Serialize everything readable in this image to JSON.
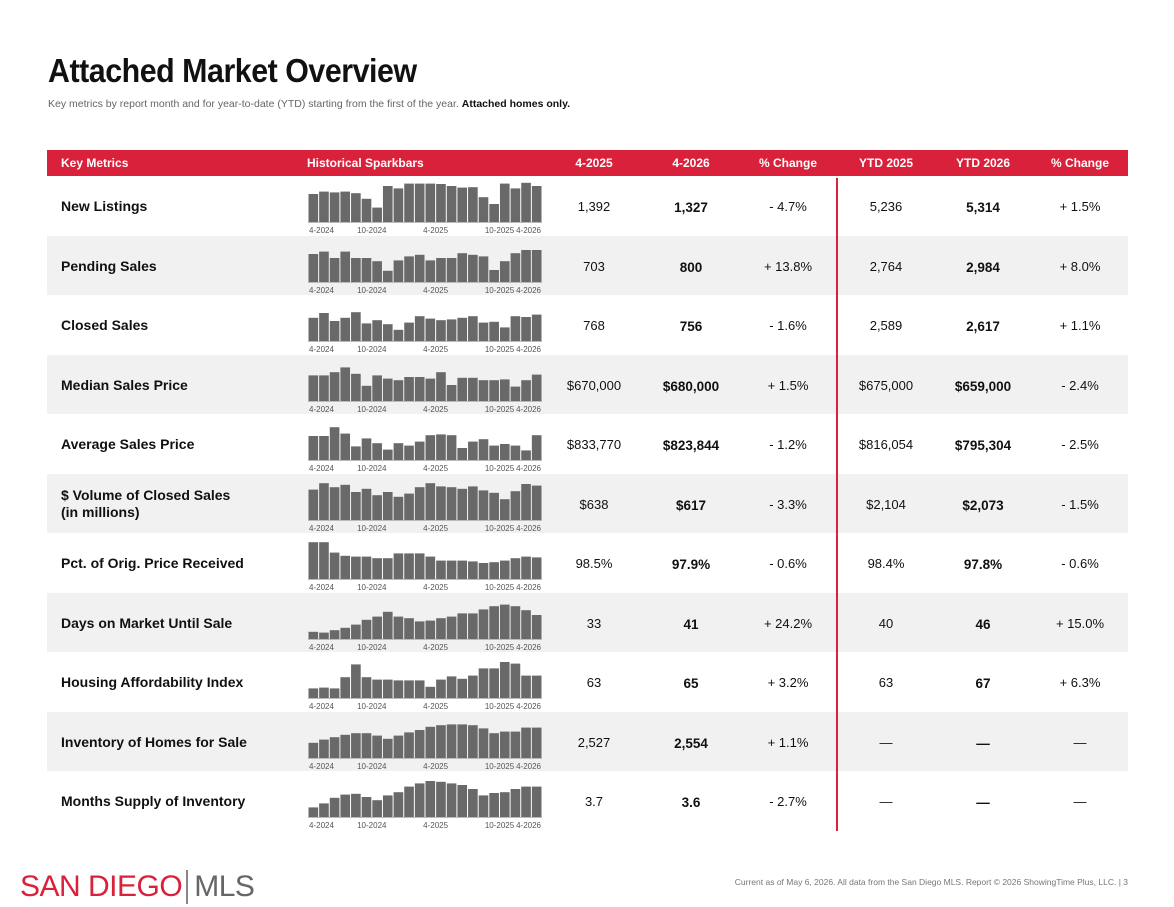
{
  "header": {
    "title": "Attached Market Overview",
    "subtitle": "Key metrics by report month and for year-to-date (YTD) starting from the first of the year.",
    "subtitle_bold": "Attached homes only."
  },
  "columns": {
    "metrics": "Key Metrics",
    "sparkbars": "Historical Sparkbars",
    "m1": "4-2025",
    "m2": "4-2026",
    "m_change": "% Change",
    "y1": "YTD 2025",
    "y2": "YTD 2026",
    "y_change": "% Change"
  },
  "spark_labels": [
    "4-2024",
    "10-2024",
    "4-2025",
    "10-2025",
    "4-2026"
  ],
  "colors": {
    "accent": "#d9213b",
    "bar": "#696969"
  },
  "rows": [
    {
      "line1": "New Listings",
      "line2": "",
      "m1": "1,392",
      "m2": "1,327",
      "mchg": "- 4.7%",
      "y1": "5,236",
      "y2": "5,314",
      "ychg": "+ 1.5%",
      "spark": [
        0.7,
        0.76,
        0.74,
        0.76,
        0.72,
        0.58,
        0.36,
        0.9,
        0.84,
        0.96,
        0.96,
        0.96,
        0.95,
        0.9,
        0.86,
        0.87,
        0.62,
        0.45,
        0.96,
        0.84,
        0.98,
        0.9
      ]
    },
    {
      "line1": "Pending Sales",
      "line2": "",
      "m1": "703",
      "m2": "800",
      "mchg": "+ 13.8%",
      "y1": "2,764",
      "y2": "2,984",
      "ychg": "+ 8.0%",
      "spark": [
        0.7,
        0.76,
        0.6,
        0.76,
        0.6,
        0.6,
        0.52,
        0.28,
        0.54,
        0.64,
        0.68,
        0.54,
        0.6,
        0.6,
        0.72,
        0.68,
        0.64,
        0.3,
        0.52,
        0.72,
        0.8,
        0.8
      ]
    },
    {
      "line1": "Closed Sales",
      "line2": "",
      "m1": "768",
      "m2": "756",
      "mchg": "- 1.6%",
      "y1": "2,589",
      "y2": "2,617",
      "ychg": "+ 1.1%",
      "spark": [
        0.58,
        0.7,
        0.5,
        0.58,
        0.72,
        0.44,
        0.52,
        0.42,
        0.28,
        0.46,
        0.62,
        0.56,
        0.52,
        0.54,
        0.58,
        0.62,
        0.46,
        0.48,
        0.34,
        0.62,
        0.6,
        0.66
      ]
    },
    {
      "line1": "Median Sales Price",
      "line2": "",
      "m1": "$670,000",
      "m2": "$680,000",
      "mchg": "+ 1.5%",
      "y1": "$675,000",
      "y2": "$659,000",
      "ychg": "- 2.4%",
      "spark": [
        0.64,
        0.64,
        0.72,
        0.84,
        0.68,
        0.38,
        0.64,
        0.56,
        0.52,
        0.6,
        0.6,
        0.56,
        0.72,
        0.4,
        0.58,
        0.58,
        0.52,
        0.52,
        0.54,
        0.36,
        0.52,
        0.66
      ]
    },
    {
      "line1": "Average Sales Price",
      "line2": "",
      "m1": "$833,770",
      "m2": "$823,844",
      "mchg": "- 1.2%",
      "y1": "$816,054",
      "y2": "$795,304",
      "ychg": "- 2.5%",
      "spark": [
        0.6,
        0.6,
        0.82,
        0.66,
        0.34,
        0.54,
        0.42,
        0.26,
        0.42,
        0.36,
        0.46,
        0.62,
        0.64,
        0.62,
        0.3,
        0.46,
        0.52,
        0.36,
        0.4,
        0.36,
        0.24,
        0.62
      ]
    },
    {
      "line1": "$ Volume of Closed Sales",
      "line2": "(in millions)",
      "m1": "$638",
      "m2": "$617",
      "mchg": "- 3.3%",
      "y1": "$2,104",
      "y2": "$2,073",
      "ychg": "- 1.5%",
      "spark": [
        0.76,
        0.92,
        0.82,
        0.88,
        0.7,
        0.78,
        0.62,
        0.7,
        0.58,
        0.66,
        0.82,
        0.92,
        0.84,
        0.82,
        0.78,
        0.84,
        0.74,
        0.68,
        0.52,
        0.72,
        0.9,
        0.86
      ]
    },
    {
      "line1": "Pct. of Orig. Price Received",
      "line2": "",
      "m1": "98.5%",
      "m2": "97.9%",
      "mchg": "- 0.6%",
      "y1": "98.4%",
      "y2": "97.8%",
      "ychg": "- 0.6%",
      "spark": [
        0.92,
        0.92,
        0.66,
        0.58,
        0.56,
        0.56,
        0.52,
        0.52,
        0.64,
        0.64,
        0.64,
        0.56,
        0.46,
        0.46,
        0.46,
        0.44,
        0.4,
        0.42,
        0.46,
        0.52,
        0.56,
        0.54
      ]
    },
    {
      "line1": "Days on Market Until Sale",
      "line2": "",
      "m1": "33",
      "m2": "41",
      "mchg": "+ 24.2%",
      "y1": "40",
      "y2": "46",
      "ychg": "+ 15.0%",
      "spark": [
        0.18,
        0.16,
        0.22,
        0.28,
        0.36,
        0.48,
        0.56,
        0.68,
        0.56,
        0.52,
        0.44,
        0.46,
        0.52,
        0.56,
        0.64,
        0.64,
        0.74,
        0.82,
        0.86,
        0.82,
        0.72,
        0.6
      ]
    },
    {
      "line1": "Housing Affordability Index",
      "line2": "",
      "m1": "63",
      "m2": "65",
      "mchg": "+ 3.2%",
      "y1": "63",
      "y2": "67",
      "ychg": "+ 6.3%",
      "spark": [
        0.24,
        0.26,
        0.24,
        0.52,
        0.84,
        0.52,
        0.46,
        0.46,
        0.44,
        0.44,
        0.44,
        0.28,
        0.46,
        0.54,
        0.48,
        0.56,
        0.74,
        0.74,
        0.9,
        0.86,
        0.56,
        0.56
      ]
    },
    {
      "line1": "Inventory of Homes for Sale",
      "line2": "",
      "m1": "2,527",
      "m2": "2,554",
      "mchg": "+ 1.1%",
      "y1": "—",
      "y2": "—",
      "ychg": "—",
      "spark": [
        0.38,
        0.46,
        0.52,
        0.58,
        0.62,
        0.62,
        0.56,
        0.48,
        0.56,
        0.64,
        0.7,
        0.78,
        0.82,
        0.84,
        0.84,
        0.82,
        0.74,
        0.62,
        0.66,
        0.66,
        0.76,
        0.76
      ]
    },
    {
      "line1": "Months Supply of Inventory",
      "line2": "",
      "m1": "3.7",
      "m2": "3.6",
      "mchg": "- 2.7%",
      "y1": "—",
      "y2": "—",
      "ychg": "—",
      "spark": [
        0.24,
        0.34,
        0.48,
        0.56,
        0.58,
        0.5,
        0.42,
        0.54,
        0.62,
        0.76,
        0.84,
        0.9,
        0.88,
        0.84,
        0.8,
        0.7,
        0.54,
        0.6,
        0.62,
        0.7,
        0.76,
        0.76
      ]
    }
  ],
  "footer": {
    "logo_left": "SAN DIEGO",
    "logo_right": "MLS",
    "note": "Current as of May 6, 2026. All data from the San Diego MLS. Report © 2026 ShowingTime Plus, LLC.  |  3"
  }
}
